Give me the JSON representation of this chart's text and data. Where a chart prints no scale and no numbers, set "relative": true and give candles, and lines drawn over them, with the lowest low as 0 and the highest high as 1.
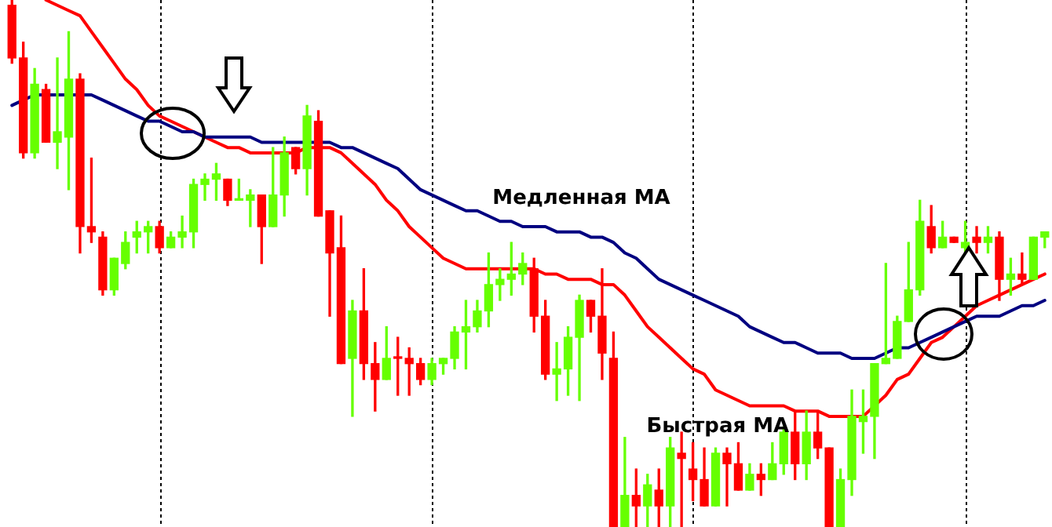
{
  "chart_data": {
    "type": "candlestick",
    "relative": true,
    "grid": "x",
    "categories": [
      null,
      null,
      null,
      null,
      null,
      null,
      null,
      null,
      null,
      null,
      null,
      null,
      null,
      null,
      null,
      null,
      null,
      null,
      null,
      null,
      null,
      null,
      null,
      null,
      null,
      null,
      null,
      null,
      null,
      null,
      null,
      null,
      null,
      null,
      null,
      null,
      null,
      null,
      null,
      null,
      null,
      null,
      null,
      null,
      null,
      null,
      null,
      null,
      null,
      null,
      null,
      null,
      null,
      null,
      null,
      null,
      null,
      null,
      null,
      null,
      null,
      null,
      null,
      null,
      null,
      null,
      null,
      null,
      null,
      null,
      null,
      null,
      null,
      null,
      null,
      null,
      null,
      null,
      null,
      null,
      null,
      null,
      null,
      null,
      null,
      null,
      null,
      null,
      null,
      null,
      null,
      null
    ],
    "ohlc": [
      [
        0.99,
        1,
        0.88,
        0.89
      ],
      [
        0.89,
        0.92,
        0.7,
        0.71
      ],
      [
        0.71,
        0.87,
        0.7,
        0.84
      ],
      [
        0.83,
        0.84,
        0.73,
        0.73
      ],
      [
        0.73,
        0.89,
        0.68,
        0.75
      ],
      [
        0.74,
        0.94,
        0.64,
        0.85
      ],
      [
        0.85,
        0.86,
        0.52,
        0.57
      ],
      [
        0.57,
        0.7,
        0.54,
        0.56
      ],
      [
        0.55,
        0.56,
        0.44,
        0.45
      ],
      [
        0.45,
        0.51,
        0.44,
        0.51
      ],
      [
        0.5,
        0.56,
        0.49,
        0.54
      ],
      [
        0.55,
        0.58,
        0.52,
        0.56
      ],
      [
        0.56,
        0.58,
        0.52,
        0.57
      ],
      [
        0.57,
        0.58,
        0.52,
        0.53
      ],
      [
        0.53,
        0.56,
        0.53,
        0.55
      ],
      [
        0.55,
        0.59,
        0.53,
        0.56
      ],
      [
        0.56,
        0.66,
        0.53,
        0.65
      ],
      [
        0.65,
        0.67,
        0.62,
        0.66
      ],
      [
        0.66,
        0.69,
        0.62,
        0.67
      ],
      [
        0.66,
        0.66,
        0.61,
        0.62
      ],
      [
        0.62,
        0.66,
        0.62,
        0.62
      ],
      [
        0.62,
        0.64,
        0.57,
        0.63
      ],
      [
        0.63,
        0.63,
        0.5,
        0.57
      ],
      [
        0.57,
        0.72,
        0.57,
        0.63
      ],
      [
        0.63,
        0.74,
        0.59,
        0.71
      ],
      [
        0.72,
        0.72,
        0.67,
        0.68
      ],
      [
        0.68,
        0.8,
        0.63,
        0.78
      ],
      [
        0.77,
        0.79,
        0.59,
        0.59
      ],
      [
        0.6,
        0.6,
        0.4,
        0.52
      ],
      [
        0.53,
        0.59,
        0.31,
        0.31
      ],
      [
        0.32,
        0.43,
        0.21,
        0.41
      ],
      [
        0.41,
        0.49,
        0.28,
        0.31
      ],
      [
        0.31,
        0.35,
        0.22,
        0.28
      ],
      [
        0.28,
        0.38,
        0.28,
        0.32
      ],
      [
        0.32,
        0.36,
        0.25,
        0.32
      ],
      [
        0.32,
        0.34,
        0.25,
        0.31
      ],
      [
        0.31,
        0.32,
        0.27,
        0.28
      ],
      [
        0.28,
        0.32,
        0.27,
        0.31
      ],
      [
        0.31,
        0.32,
        0.29,
        0.32
      ],
      [
        0.32,
        0.38,
        0.3,
        0.37
      ],
      [
        0.37,
        0.43,
        0.3,
        0.38
      ],
      [
        0.38,
        0.43,
        0.37,
        0.41
      ],
      [
        0.41,
        0.52,
        0.38,
        0.46
      ],
      [
        0.46,
        0.49,
        0.43,
        0.47
      ],
      [
        0.47,
        0.54,
        0.44,
        0.48
      ],
      [
        0.48,
        0.52,
        0.46,
        0.5
      ],
      [
        0.49,
        0.51,
        0.37,
        0.4
      ],
      [
        0.4,
        0.43,
        0.28,
        0.29
      ],
      [
        0.29,
        0.35,
        0.24,
        0.3
      ],
      [
        0.3,
        0.38,
        0.25,
        0.36
      ],
      [
        0.36,
        0.44,
        0.24,
        0.43
      ],
      [
        0.43,
        0.43,
        0.37,
        0.4
      ],
      [
        0.4,
        0.49,
        0.28,
        0.33
      ],
      [
        0.32,
        0.37,
        0,
        0
      ],
      [
        0,
        0.17,
        0,
        0.06
      ],
      [
        0.06,
        0.11,
        0,
        0.04
      ],
      [
        0.04,
        0.1,
        0,
        0.08
      ],
      [
        0.07,
        0.11,
        0,
        0.04
      ],
      [
        0.04,
        0.17,
        0,
        0.15
      ],
      [
        0.14,
        0.18,
        0,
        0.13
      ],
      [
        0.11,
        0.16,
        0.05,
        0.09
      ],
      [
        0.09,
        0.15,
        0.04,
        0.04
      ],
      [
        0.04,
        0.15,
        0.04,
        0.14
      ],
      [
        0.14,
        0.15,
        0.04,
        0.12
      ],
      [
        0.12,
        0.16,
        0.07,
        0.07
      ],
      [
        0.07,
        0.12,
        0.07,
        0.1
      ],
      [
        0.1,
        0.12,
        0.06,
        0.09
      ],
      [
        0.09,
        0.16,
        0.09,
        0.12
      ],
      [
        0.12,
        0.19,
        0.1,
        0.18
      ],
      [
        0.18,
        0.22,
        0.09,
        0.12
      ],
      [
        0.12,
        0.22,
        0.09,
        0.18
      ],
      [
        0.18,
        0.22,
        0.13,
        0.15
      ],
      [
        0.15,
        0.15,
        0,
        0
      ],
      [
        0,
        0.11,
        0,
        0.09
      ],
      [
        0.09,
        0.26,
        0.06,
        0.21
      ],
      [
        0.2,
        0.26,
        0.14,
        0.21
      ],
      [
        0.21,
        0.31,
        0.13,
        0.31
      ],
      [
        0.31,
        0.5,
        0.31,
        0.32
      ],
      [
        0.32,
        0.4,
        0.32,
        0.39
      ],
      [
        0.39,
        0.54,
        0.39,
        0.45
      ],
      [
        0.45,
        0.62,
        0.44,
        0.58
      ],
      [
        0.57,
        0.61,
        0.52,
        0.53
      ],
      [
        0.53,
        0.58,
        0.53,
        0.55
      ],
      [
        0.55,
        0.55,
        0.54,
        0.54
      ],
      [
        0.53,
        0.58,
        0.52,
        0.54
      ],
      [
        0.55,
        0.57,
        0.52,
        0.54
      ],
      [
        0.54,
        0.57,
        0.52,
        0.55
      ],
      [
        0.55,
        0.56,
        0.43,
        0.47
      ],
      [
        0.47,
        0.51,
        0.44,
        0.48
      ],
      [
        0.48,
        0.52,
        0.46,
        0.47
      ],
      [
        0.47,
        0.55,
        0.47,
        0.55
      ],
      [
        0.55,
        0.56,
        0.53,
        0.56
      ]
    ],
    "colors": [
      "#ff0000",
      "#ff0000",
      "#66ff00",
      "#ff0000",
      "#66ff00",
      "#66ff00",
      "#ff0000",
      "#ff0000",
      "#ff0000",
      "#66ff00",
      "#66ff00",
      "#66ff00",
      "#66ff00",
      "#ff0000",
      "#66ff00",
      "#66ff00",
      "#66ff00",
      "#66ff00",
      "#66ff00",
      "#ff0000",
      "#66ff00",
      "#66ff00",
      "#ff0000",
      "#66ff00",
      "#66ff00",
      "#ff0000",
      "#66ff00",
      "#ff0000",
      "#ff0000",
      "#ff0000",
      "#66ff00",
      "#ff0000",
      "#ff0000",
      "#66ff00",
      "#ff0000",
      "#ff0000",
      "#ff0000",
      "#66ff00",
      "#66ff00",
      "#66ff00",
      "#66ff00",
      "#66ff00",
      "#66ff00",
      "#66ff00",
      "#66ff00",
      "#66ff00",
      "#ff0000",
      "#ff0000",
      "#66ff00",
      "#66ff00",
      "#66ff00",
      "#ff0000",
      "#ff0000",
      "#ff0000",
      "#66ff00",
      "#ff0000",
      "#66ff00",
      "#ff0000",
      "#66ff00",
      "#ff0000",
      "#ff0000",
      "#ff0000",
      "#66ff00",
      "#ff0000",
      "#ff0000",
      "#66ff00",
      "#ff0000",
      "#66ff00",
      "#66ff00",
      "#ff0000",
      "#66ff00",
      "#ff0000",
      "#ff0000",
      "#66ff00",
      "#66ff00",
      "#66ff00",
      "#66ff00",
      "#66ff00",
      "#66ff00",
      "#66ff00",
      "#66ff00",
      "#ff0000",
      "#66ff00",
      "#ff0000",
      "#66ff00",
      "#ff0000",
      "#66ff00",
      "#ff0000",
      "#66ff00",
      "#ff0000",
      "#66ff00",
      "#66ff00"
    ],
    "series": [
      {
        "type": "line",
        "name": "Медленная MA",
        "color": "#000080",
        "values": [
          0.8,
          0.81,
          0.82,
          0.82,
          0.82,
          0.82,
          0.82,
          0.82,
          0.81,
          0.8,
          0.79,
          0.78,
          0.77,
          0.77,
          0.76,
          0.75,
          0.75,
          0.74,
          0.74,
          0.74,
          0.74,
          0.74,
          0.73,
          0.73,
          0.73,
          0.73,
          0.73,
          0.73,
          0.73,
          0.72,
          0.72,
          0.71,
          0.7,
          0.69,
          0.68,
          0.66,
          0.64,
          0.63,
          0.62,
          0.61,
          0.6,
          0.6,
          0.59,
          0.58,
          0.58,
          0.57,
          0.57,
          0.57,
          0.56,
          0.56,
          0.56,
          0.55,
          0.55,
          0.54,
          0.52,
          0.51,
          0.49,
          0.47,
          0.46,
          0.45,
          0.44,
          0.43,
          0.42,
          0.41,
          0.4,
          0.38,
          0.37,
          0.36,
          0.35,
          0.35,
          0.34,
          0.33,
          0.33,
          0.33,
          0.32,
          0.32,
          0.32,
          0.33,
          0.34,
          0.34,
          0.35,
          0.36,
          0.37,
          0.38,
          0.39,
          0.4,
          0.4,
          0.4,
          0.41,
          0.42,
          0.42,
          0.43
        ]
      },
      {
        "type": "line",
        "name": "Быстрая MA",
        "color": "#ff0000",
        "values": [
          null,
          null,
          null,
          1.0,
          0.99,
          0.98,
          0.97,
          0.94,
          0.91,
          0.88,
          0.85,
          0.83,
          0.8,
          0.78,
          0.77,
          0.76,
          0.75,
          0.74,
          0.73,
          0.72,
          0.72,
          0.71,
          0.71,
          0.71,
          0.71,
          0.71,
          0.72,
          0.72,
          0.72,
          0.71,
          0.69,
          0.67,
          0.65,
          0.62,
          0.6,
          0.57,
          0.55,
          0.53,
          0.51,
          0.5,
          0.49,
          0.49,
          0.49,
          0.49,
          0.49,
          0.49,
          0.49,
          0.48,
          0.48,
          0.47,
          0.47,
          0.47,
          0.46,
          0.46,
          0.44,
          0.41,
          0.38,
          0.36,
          0.34,
          0.32,
          0.3,
          0.29,
          0.26,
          0.25,
          0.24,
          0.23,
          0.23,
          0.23,
          0.23,
          0.22,
          0.22,
          0.22,
          0.21,
          0.21,
          0.21,
          0.21,
          0.23,
          0.25,
          0.28,
          0.29,
          0.32,
          0.35,
          0.36,
          0.38,
          0.4,
          0.42,
          0.43,
          0.44,
          0.45,
          0.46,
          0.47,
          0.48
        ]
      }
    ]
  }
}
